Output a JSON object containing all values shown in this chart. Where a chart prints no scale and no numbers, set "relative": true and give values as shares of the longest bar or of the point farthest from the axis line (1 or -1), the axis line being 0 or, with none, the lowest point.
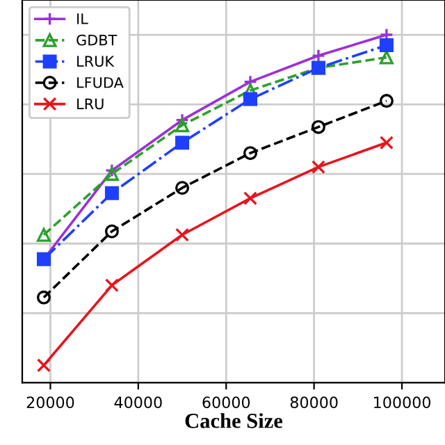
{
  "chart_data": {
    "type": "line",
    "xlabel": "Cache Size",
    "relative": true,
    "x": [
      18500,
      34000,
      50000,
      65500,
      81000,
      96500
    ],
    "series": [
      {
        "name": "IL",
        "color": "#9b30d9",
        "marker": "plus",
        "line_style": "solid",
        "values": [
          0.355,
          0.61,
          0.755,
          0.865,
          0.94,
          1
        ]
      },
      {
        "name": "GDBT",
        "color": "#2ca02c",
        "marker": "triangle",
        "line_style": "dashed",
        "values": [
          0.425,
          0.6,
          0.74,
          0.84,
          0.905,
          0.935
        ]
      },
      {
        "name": "LRUK",
        "color": "#1f3fff",
        "marker": "square",
        "line_style": "dashdot",
        "values": [
          0.355,
          0.545,
          0.69,
          0.815,
          0.905,
          0.97
        ]
      },
      {
        "name": "LFUDA",
        "color": "#000000",
        "marker": "circle",
        "line_style": "dashed",
        "values": [
          0.245,
          0.435,
          0.56,
          0.66,
          0.735,
          0.81
        ]
      },
      {
        "name": "LRU",
        "color": "#e8141c",
        "marker": "cross",
        "line_style": "solid",
        "values": [
          0.05,
          0.28,
          0.425,
          0.53,
          0.62,
          0.69
        ]
      }
    ],
    "xlim": [
      13600,
      109800
    ],
    "xticks": [
      20000,
      40000,
      60000,
      80000,
      100000
    ],
    "grid": true,
    "legend": "top left"
  }
}
